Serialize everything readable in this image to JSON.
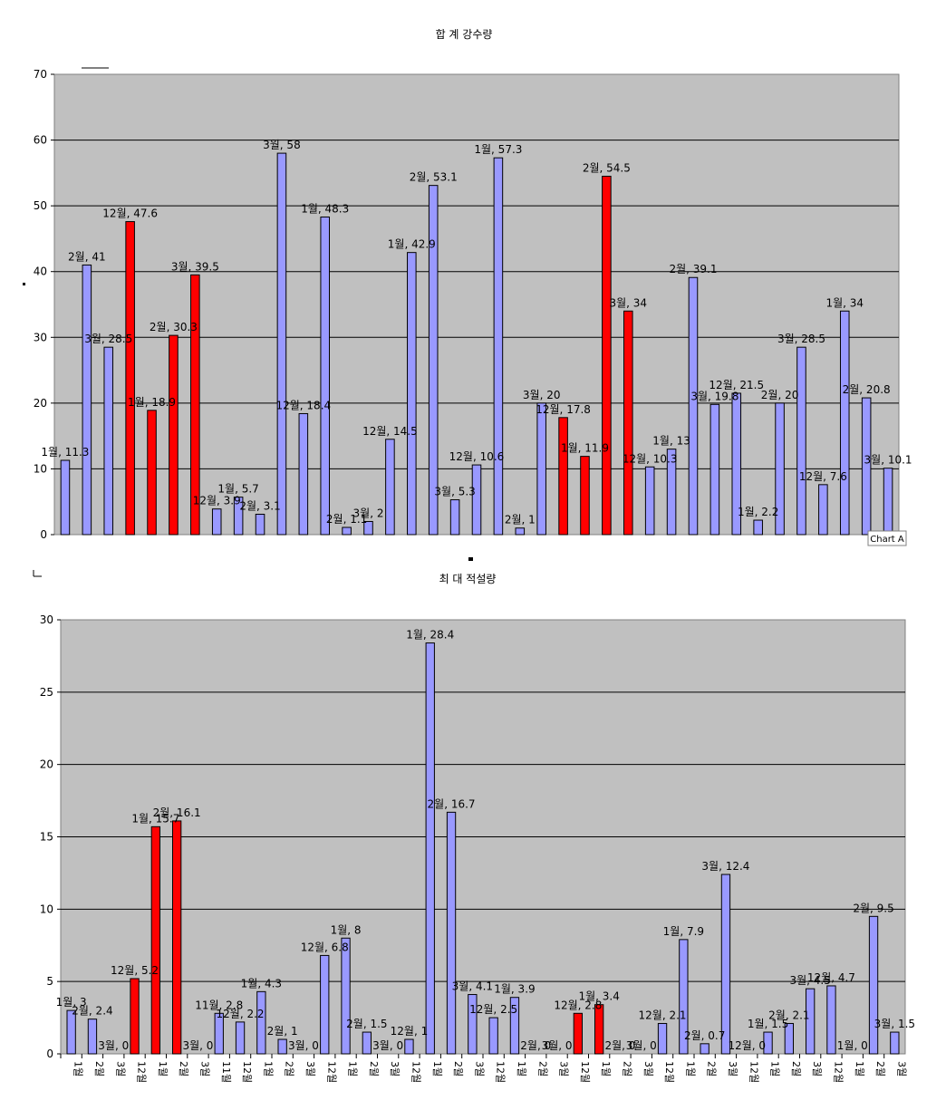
{
  "chart_data": [
    {
      "type": "bar",
      "title": "합 계 강수량",
      "ylim": [
        0,
        70
      ],
      "yticks": [
        0,
        10,
        20,
        30,
        40,
        50,
        60,
        70
      ],
      "grid": true,
      "plot_background": "#c0c0c0",
      "colors": {
        "normal": "#9999ff",
        "highlight": "#ff0000"
      },
      "tag": "Chart A",
      "bars": [
        {
          "label": "1월, 11.3",
          "value": 11.3,
          "highlight": false
        },
        {
          "label": "2월, 41",
          "value": 41,
          "highlight": false
        },
        {
          "label": "3월, 28.5",
          "value": 28.5,
          "highlight": false
        },
        {
          "label": "12월, 47.6",
          "value": 47.6,
          "highlight": true
        },
        {
          "label": "1월, 18.9",
          "value": 18.9,
          "highlight": true
        },
        {
          "label": "2월, 30.3",
          "value": 30.3,
          "highlight": true
        },
        {
          "label": "3월, 39.5",
          "value": 39.5,
          "highlight": true
        },
        {
          "label": "12월, 3.9",
          "value": 3.9,
          "highlight": false
        },
        {
          "label": "1월, 5.7",
          "value": 5.7,
          "highlight": false
        },
        {
          "label": "2월, 3.1",
          "value": 3.1,
          "highlight": false
        },
        {
          "label": "3월, 58",
          "value": 58,
          "highlight": false
        },
        {
          "label": "12월, 18.4",
          "value": 18.4,
          "highlight": false
        },
        {
          "label": "1월, 48.3",
          "value": 48.3,
          "highlight": false
        },
        {
          "label": "2월, 1.1",
          "value": 1.1,
          "highlight": false
        },
        {
          "label": "3월, 2",
          "value": 2,
          "highlight": false
        },
        {
          "label": "12월, 14.5",
          "value": 14.5,
          "highlight": false
        },
        {
          "label": "1월, 42.9",
          "value": 42.9,
          "highlight": false
        },
        {
          "label": "2월, 53.1",
          "value": 53.1,
          "highlight": false
        },
        {
          "label": "3월, 5.3",
          "value": 5.3,
          "highlight": false
        },
        {
          "label": "12월, 10.6",
          "value": 10.6,
          "highlight": false
        },
        {
          "label": "1월, 57.3",
          "value": 57.3,
          "highlight": false
        },
        {
          "label": "2월, 1",
          "value": 1,
          "highlight": false
        },
        {
          "label": "3월, 20",
          "value": 20,
          "highlight": false
        },
        {
          "label": "12월, 17.8",
          "value": 17.8,
          "highlight": true
        },
        {
          "label": "1월, 11.9",
          "value": 11.9,
          "highlight": true
        },
        {
          "label": "2월, 54.5",
          "value": 54.5,
          "highlight": true
        },
        {
          "label": "3월, 34",
          "value": 34,
          "highlight": true
        },
        {
          "label": "12월, 10.3",
          "value": 10.3,
          "highlight": false
        },
        {
          "label": "1월, 13",
          "value": 13,
          "highlight": false
        },
        {
          "label": "2월, 39.1",
          "value": 39.1,
          "highlight": false
        },
        {
          "label": "3월, 19.8",
          "value": 19.8,
          "highlight": false
        },
        {
          "label": "12월, 21.5",
          "value": 21.5,
          "highlight": false
        },
        {
          "label": "1월, 2.2",
          "value": 2.2,
          "highlight": false
        },
        {
          "label": "2월, 20",
          "value": 20,
          "highlight": false
        },
        {
          "label": "3월, 28.5",
          "value": 28.5,
          "highlight": false
        },
        {
          "label": "12월, 7.6",
          "value": 7.6,
          "highlight": false
        },
        {
          "label": "1월, 34",
          "value": 34,
          "highlight": false
        },
        {
          "label": "2월, 20.8",
          "value": 20.8,
          "highlight": false
        },
        {
          "label": "3월, 10.1",
          "value": 10.1,
          "highlight": false
        }
      ]
    },
    {
      "type": "bar",
      "title": "최 대 적설량",
      "ylim": [
        0,
        30
      ],
      "yticks": [
        0,
        5,
        10,
        15,
        20,
        25,
        30
      ],
      "grid": true,
      "plot_background": "#c0c0c0",
      "colors": {
        "normal": "#9999ff",
        "highlight": "#ff0000"
      },
      "bars": [
        {
          "label": "1월, 3",
          "value": 3,
          "highlight": false,
          "category": "1월"
        },
        {
          "label": "2월, 2.4",
          "value": 2.4,
          "highlight": false,
          "category": "2월"
        },
        {
          "label": "3월, 0",
          "value": 0,
          "highlight": false,
          "category": "3월"
        },
        {
          "label": "12월, 5.2",
          "value": 5.2,
          "highlight": true,
          "category": "12월"
        },
        {
          "label": "1월, 15.7",
          "value": 15.7,
          "highlight": true,
          "category": "1월"
        },
        {
          "label": "2월, 16.1",
          "value": 16.1,
          "highlight": true,
          "category": "2월"
        },
        {
          "label": "3월, 0",
          "value": 0,
          "highlight": false,
          "category": "3월"
        },
        {
          "label": "11월, 2.8",
          "value": 2.8,
          "highlight": false,
          "category": "11월"
        },
        {
          "label": "12월, 2.2",
          "value": 2.2,
          "highlight": false,
          "category": "12월"
        },
        {
          "label": "1월, 4.3",
          "value": 4.3,
          "highlight": false,
          "category": "1월"
        },
        {
          "label": "2월, 1",
          "value": 1,
          "highlight": false,
          "category": "2월"
        },
        {
          "label": "3월, 0",
          "value": 0,
          "highlight": false,
          "category": "3월"
        },
        {
          "label": "12월, 6.8",
          "value": 6.8,
          "highlight": false,
          "category": "12월"
        },
        {
          "label": "1월, 8",
          "value": 8,
          "highlight": false,
          "category": "1월"
        },
        {
          "label": "2월, 1.5",
          "value": 1.5,
          "highlight": false,
          "category": "2월"
        },
        {
          "label": "3월, 0",
          "value": 0,
          "highlight": false,
          "category": "3월"
        },
        {
          "label": "12월, 1",
          "value": 1,
          "highlight": false,
          "category": "12월"
        },
        {
          "label": "1월, 28.4",
          "value": 28.4,
          "highlight": false,
          "category": "1월"
        },
        {
          "label": "2월, 16.7",
          "value": 16.7,
          "highlight": false,
          "category": "2월"
        },
        {
          "label": "3월, 4.1",
          "value": 4.1,
          "highlight": false,
          "category": "3월"
        },
        {
          "label": "12월, 2.5",
          "value": 2.5,
          "highlight": false,
          "category": "12월"
        },
        {
          "label": "1월, 3.9",
          "value": 3.9,
          "highlight": false,
          "category": "1월"
        },
        {
          "label": "2월, 0",
          "value": 0,
          "highlight": false,
          "category": "2월"
        },
        {
          "label": "3월, 0",
          "value": 0,
          "highlight": false,
          "category": "3월"
        },
        {
          "label": "12월, 2.8",
          "value": 2.8,
          "highlight": true,
          "category": "12월"
        },
        {
          "label": "1월, 3.4",
          "value": 3.4,
          "highlight": true,
          "category": "1월"
        },
        {
          "label": "2월, 0",
          "value": 0,
          "highlight": false,
          "category": "2월"
        },
        {
          "label": "3월, 0",
          "value": 0,
          "highlight": false,
          "category": "3월"
        },
        {
          "label": "12월, 2.1",
          "value": 2.1,
          "highlight": false,
          "category": "12월"
        },
        {
          "label": "1월, 7.9",
          "value": 7.9,
          "highlight": false,
          "category": "1월"
        },
        {
          "label": "2월, 0.7",
          "value": 0.7,
          "highlight": false,
          "category": "2월"
        },
        {
          "label": "3월, 12.4",
          "value": 12.4,
          "highlight": false,
          "category": "3월"
        },
        {
          "label": "12월, 0",
          "value": 0,
          "highlight": false,
          "category": "12월"
        },
        {
          "label": "1월, 1.5",
          "value": 1.5,
          "highlight": false,
          "category": "1월"
        },
        {
          "label": "2월, 2.1",
          "value": 2.1,
          "highlight": false,
          "category": "2월"
        },
        {
          "label": "3월, 4.5",
          "value": 4.5,
          "highlight": false,
          "category": "3월"
        },
        {
          "label": "12월, 4.7",
          "value": 4.7,
          "highlight": false,
          "category": "12월"
        },
        {
          "label": "1월, 0",
          "value": 0,
          "highlight": false,
          "category": "1월"
        },
        {
          "label": "2월, 9.5",
          "value": 9.5,
          "highlight": false,
          "category": "2월"
        },
        {
          "label": "3월, 1.5",
          "value": 1.5,
          "highlight": false,
          "category": "3월"
        }
      ]
    }
  ]
}
